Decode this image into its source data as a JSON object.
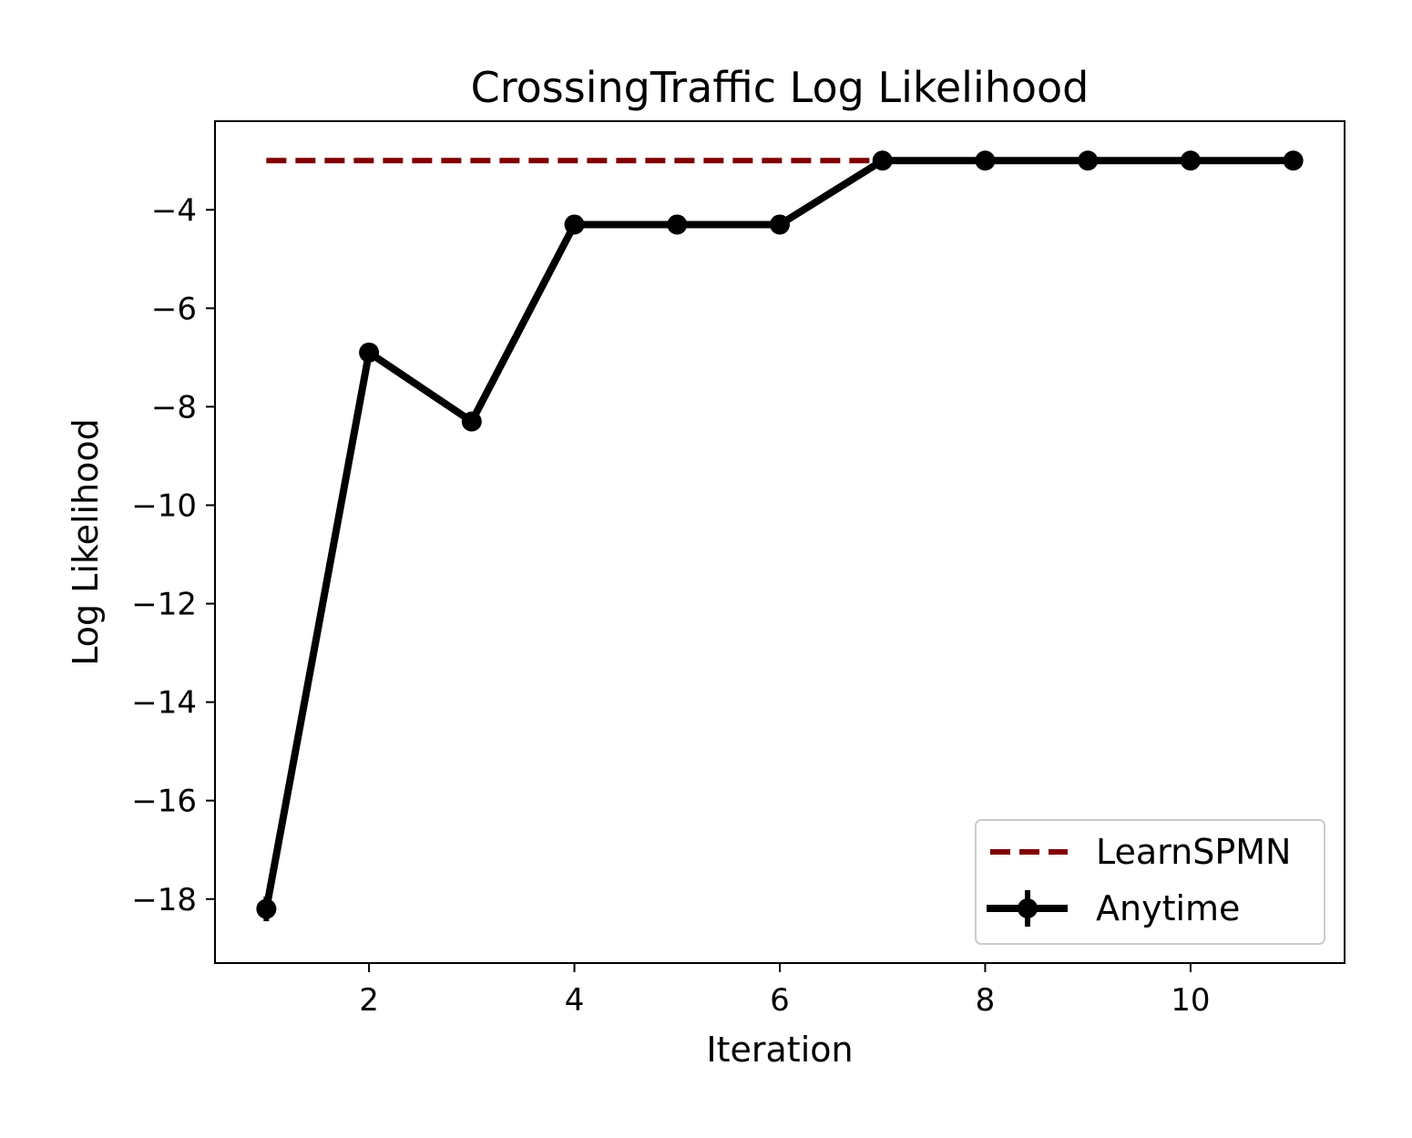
{
  "chart_data": {
    "type": "line",
    "title": "CrossingTraffic Log Likelihood",
    "xlabel": "Iteration",
    "ylabel": "Log Likelihood",
    "xlim": [
      0.5,
      11.5
    ],
    "ylim": [
      -19.3,
      -2.2
    ],
    "x_ticks": [
      2,
      4,
      6,
      8,
      10
    ],
    "y_ticks": [
      -18,
      -16,
      -14,
      -12,
      -10,
      -8,
      -6,
      -4
    ],
    "grid": false,
    "legend": {
      "position": "lower-right"
    },
    "series": [
      {
        "name": "LearnSPMN",
        "style": "dashed",
        "color": "#800000",
        "x": [
          1,
          7
        ],
        "y": [
          -3.0,
          -3.0
        ]
      },
      {
        "name": "Anytime",
        "style": "solid-marker-errorbar",
        "color": "#000000",
        "x": [
          1,
          2,
          3,
          4,
          5,
          6,
          7,
          8,
          9,
          10,
          11
        ],
        "y": [
          -18.2,
          -6.9,
          -8.3,
          -4.3,
          -4.3,
          -4.3,
          -3.0,
          -3.0,
          -3.0,
          -3.0,
          -3.0
        ],
        "yerr": [
          0.25,
          0.05,
          0.05,
          0.02,
          0.02,
          0.02,
          0.01,
          0.01,
          0.01,
          0.01,
          0.01
        ]
      }
    ]
  }
}
